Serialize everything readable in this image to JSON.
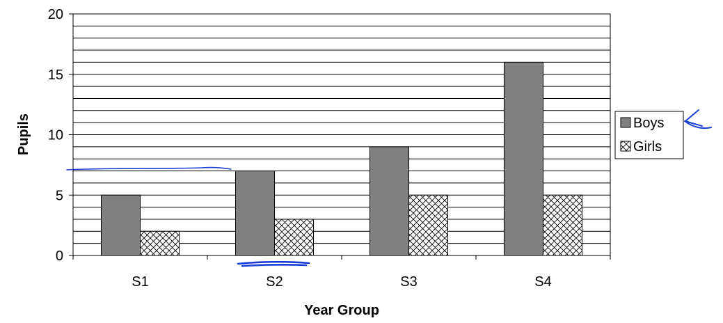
{
  "chart_data": {
    "type": "bar",
    "categories": [
      "S1",
      "S2",
      "S3",
      "S4"
    ],
    "series": [
      {
        "name": "Boys",
        "values": [
          5,
          7,
          9,
          16
        ],
        "color": "#808080",
        "pattern": "solid"
      },
      {
        "name": "Girls",
        "values": [
          2,
          3,
          5,
          5
        ],
        "color": "#ffffff",
        "pattern": "crosshatch"
      }
    ],
    "title": "",
    "xlabel": "Year Group",
    "ylabel": "Pupils",
    "ylim": [
      0,
      20
    ],
    "yticks": [
      "0",
      "5",
      "10",
      "15",
      "20"
    ],
    "grid": true,
    "legend": "right",
    "annotation_color": "#1a3fd6"
  }
}
